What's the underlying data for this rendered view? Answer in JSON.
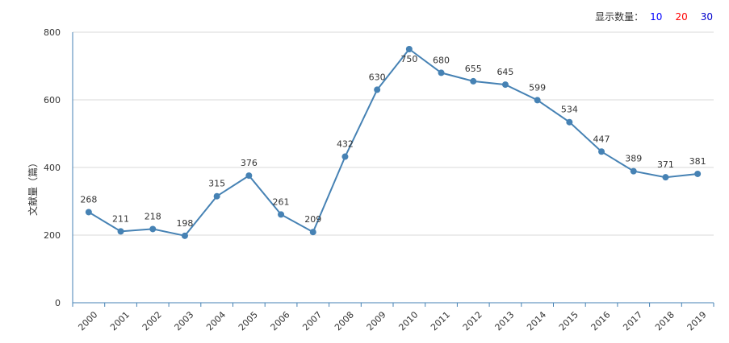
{
  "toolbar": {
    "label": "显示数量：",
    "options": [
      {
        "label": "10",
        "color": "#0000ff"
      },
      {
        "label": "20",
        "color": "#ff0000"
      },
      {
        "label": "30",
        "color": "#0000cc"
      }
    ]
  },
  "colors": {
    "line": "#4682b4",
    "axis": "#4682b4",
    "grid": "#d9d9d9"
  },
  "chart_data": {
    "type": "line",
    "ylabel": "文献量（篇）",
    "xlabel": "",
    "ylim": [
      0,
      800
    ],
    "yticks": [
      0,
      200,
      400,
      600,
      800
    ],
    "x": [
      "2000",
      "2001",
      "2002",
      "2003",
      "2004",
      "2005",
      "2006",
      "2007",
      "2008",
      "2009",
      "2010",
      "2011",
      "2012",
      "2013",
      "2014",
      "2015",
      "2016",
      "2017",
      "2018",
      "2019"
    ],
    "series": [
      {
        "values": [
          268,
          211,
          218,
          198,
          315,
          376,
          261,
          209,
          432,
          630,
          750,
          680,
          655,
          645,
          599,
          534,
          447,
          389,
          371,
          381
        ]
      }
    ],
    "grid": true
  }
}
